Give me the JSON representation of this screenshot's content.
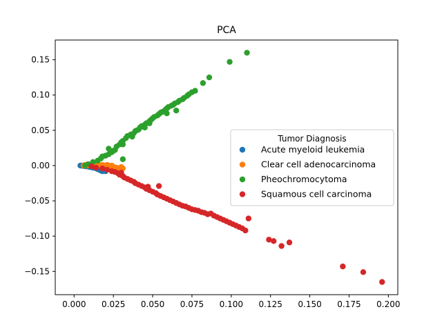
{
  "chart_data": {
    "type": "scatter",
    "title": "PCA",
    "xlabel": "",
    "ylabel": "",
    "xlim": [
      -0.012,
      0.206
    ],
    "ylim": [
      -0.183,
      0.178
    ],
    "x_ticks": [
      0.0,
      0.025,
      0.05,
      0.075,
      0.1,
      0.125,
      0.15,
      0.175,
      0.2
    ],
    "x_tick_labels": [
      "0.000",
      "0.025",
      "0.050",
      "0.075",
      "0.100",
      "0.125",
      "0.150",
      "0.175",
      "0.200"
    ],
    "y_ticks": [
      -0.15,
      -0.1,
      -0.05,
      0.0,
      0.05,
      0.1,
      0.15
    ],
    "y_tick_labels": [
      "−0.15",
      "−0.10",
      "−0.05",
      "0.00",
      "0.05",
      "0.10",
      "0.15"
    ],
    "grid": false,
    "legend": {
      "title": "Tumor Diagnosis",
      "position": "center-right"
    },
    "series": [
      {
        "name": "Acute myeloid leukemia",
        "color": "#1f77b4",
        "points": [
          [
            0.004,
            0.0
          ],
          [
            0.005,
            0.0
          ],
          [
            0.0055,
            -0.0005
          ],
          [
            0.006,
            0.0
          ],
          [
            0.0065,
            -0.0005
          ],
          [
            0.007,
            -0.001
          ],
          [
            0.0075,
            -0.001
          ],
          [
            0.008,
            -0.001
          ],
          [
            0.009,
            -0.0015
          ],
          [
            0.01,
            -0.002
          ],
          [
            0.011,
            -0.002
          ],
          [
            0.012,
            -0.003
          ],
          [
            0.013,
            -0.003
          ],
          [
            0.014,
            -0.004
          ],
          [
            0.015,
            -0.005
          ],
          [
            0.016,
            -0.006
          ],
          [
            0.017,
            -0.007
          ],
          [
            0.018,
            -0.008
          ],
          [
            0.02,
            -0.008
          ]
        ]
      },
      {
        "name": "Clear cell adenocarcinoma",
        "color": "#ff7f0e",
        "points": [
          [
            0.006,
            0.0
          ],
          [
            0.007,
            0.001
          ],
          [
            0.008,
            0.0
          ],
          [
            0.009,
            0.001
          ],
          [
            0.01,
            0.0
          ],
          [
            0.011,
            0.001
          ],
          [
            0.012,
            0.0
          ],
          [
            0.013,
            0.0
          ],
          [
            0.014,
            0.001
          ],
          [
            0.015,
            0.0
          ],
          [
            0.016,
            0.001
          ],
          [
            0.017,
            0.0
          ],
          [
            0.018,
            0.001
          ],
          [
            0.019,
            0.0
          ],
          [
            0.02,
            0.0
          ],
          [
            0.021,
            0.001
          ],
          [
            0.022,
            0.0
          ],
          [
            0.023,
            -0.001
          ],
          [
            0.024,
            0.0
          ],
          [
            0.025,
            -0.002
          ],
          [
            0.026,
            -0.004
          ],
          [
            0.027,
            -0.003
          ],
          [
            0.028,
            -0.005
          ],
          [
            0.03,
            -0.002
          ],
          [
            0.031,
            -0.004
          ]
        ]
      },
      {
        "name": "Pheochromocytoma",
        "color": "#2ca02c",
        "points": [
          [
            0.007,
            0.0
          ],
          [
            0.009,
            0.002
          ],
          [
            0.012,
            0.005
          ],
          [
            0.015,
            0.007
          ],
          [
            0.017,
            0.01
          ],
          [
            0.018,
            0.013
          ],
          [
            0.02,
            0.014
          ],
          [
            0.022,
            0.016
          ],
          [
            0.024,
            0.019
          ],
          [
            0.022,
            0.024
          ],
          [
            0.025,
            0.021
          ],
          [
            0.027,
            0.027
          ],
          [
            0.029,
            0.03
          ],
          [
            0.03,
            0.033
          ],
          [
            0.031,
            0.035
          ],
          [
            0.033,
            0.039
          ],
          [
            0.034,
            0.042
          ],
          [
            0.036,
            0.044
          ],
          [
            0.038,
            0.046
          ],
          [
            0.039,
            0.049
          ],
          [
            0.041,
            0.051
          ],
          [
            0.042,
            0.054
          ],
          [
            0.043,
            0.056
          ],
          [
            0.045,
            0.058
          ],
          [
            0.046,
            0.06
          ],
          [
            0.048,
            0.063
          ],
          [
            0.049,
            0.065
          ],
          [
            0.05,
            0.067
          ],
          [
            0.051,
            0.069
          ],
          [
            0.053,
            0.071
          ],
          [
            0.054,
            0.073
          ],
          [
            0.055,
            0.075
          ],
          [
            0.056,
            0.076
          ],
          [
            0.058,
            0.079
          ],
          [
            0.059,
            0.081
          ],
          [
            0.06,
            0.083
          ],
          [
            0.062,
            0.085
          ],
          [
            0.063,
            0.086
          ],
          [
            0.064,
            0.088
          ],
          [
            0.066,
            0.09
          ],
          [
            0.067,
            0.092
          ],
          [
            0.069,
            0.094
          ],
          [
            0.07,
            0.096
          ],
          [
            0.072,
            0.099
          ],
          [
            0.073,
            0.101
          ],
          [
            0.075,
            0.104
          ],
          [
            0.077,
            0.106
          ],
          [
            0.065,
            0.078
          ],
          [
            0.059,
            0.074
          ],
          [
            0.048,
            0.06
          ],
          [
            0.045,
            0.054
          ],
          [
            0.04,
            0.05
          ],
          [
            0.037,
            0.041
          ],
          [
            0.031,
            0.03
          ],
          [
            0.026,
            0.022
          ],
          [
            0.031,
            0.009
          ],
          [
            0.082,
            0.117
          ],
          [
            0.086,
            0.125
          ],
          [
            0.099,
            0.147
          ],
          [
            0.11,
            0.16
          ]
        ]
      },
      {
        "name": "Squamous cell carcinoma",
        "color": "#d62728",
        "points": [
          [
            0.011,
            -0.001
          ],
          [
            0.014,
            -0.003
          ],
          [
            0.018,
            -0.004
          ],
          [
            0.021,
            -0.006
          ],
          [
            0.024,
            -0.008
          ],
          [
            0.026,
            -0.009
          ],
          [
            0.028,
            -0.011
          ],
          [
            0.029,
            -0.013
          ],
          [
            0.031,
            -0.015
          ],
          [
            0.032,
            -0.017
          ],
          [
            0.034,
            -0.019
          ],
          [
            0.036,
            -0.021
          ],
          [
            0.038,
            -0.023
          ],
          [
            0.039,
            -0.025
          ],
          [
            0.041,
            -0.027
          ],
          [
            0.043,
            -0.029
          ],
          [
            0.045,
            -0.031
          ],
          [
            0.046,
            -0.033
          ],
          [
            0.048,
            -0.035
          ],
          [
            0.05,
            -0.037
          ],
          [
            0.052,
            -0.039
          ],
          [
            0.053,
            -0.041
          ],
          [
            0.055,
            -0.043
          ],
          [
            0.057,
            -0.045
          ],
          [
            0.059,
            -0.047
          ],
          [
            0.061,
            -0.049
          ],
          [
            0.063,
            -0.051
          ],
          [
            0.065,
            -0.053
          ],
          [
            0.067,
            -0.055
          ],
          [
            0.069,
            -0.057
          ],
          [
            0.071,
            -0.058
          ],
          [
            0.073,
            -0.06
          ],
          [
            0.075,
            -0.062
          ],
          [
            0.077,
            -0.063
          ],
          [
            0.079,
            -0.064
          ],
          [
            0.081,
            -0.066
          ],
          [
            0.083,
            -0.067
          ],
          [
            0.085,
            -0.069
          ],
          [
            0.087,
            -0.068
          ],
          [
            0.089,
            -0.071
          ],
          [
            0.091,
            -0.073
          ],
          [
            0.093,
            -0.075
          ],
          [
            0.095,
            -0.077
          ],
          [
            0.097,
            -0.079
          ],
          [
            0.099,
            -0.081
          ],
          [
            0.101,
            -0.083
          ],
          [
            0.103,
            -0.085
          ],
          [
            0.105,
            -0.087
          ],
          [
            0.107,
            -0.089
          ],
          [
            0.109,
            -0.092
          ],
          [
            0.047,
            -0.03
          ],
          [
            0.054,
            -0.029
          ],
          [
            0.03,
            -0.01
          ],
          [
            0.111,
            -0.075
          ],
          [
            0.124,
            -0.105
          ],
          [
            0.127,
            -0.107
          ],
          [
            0.132,
            -0.114
          ],
          [
            0.137,
            -0.109
          ],
          [
            0.171,
            -0.143
          ],
          [
            0.184,
            -0.151
          ],
          [
            0.196,
            -0.165
          ]
        ]
      }
    ]
  }
}
